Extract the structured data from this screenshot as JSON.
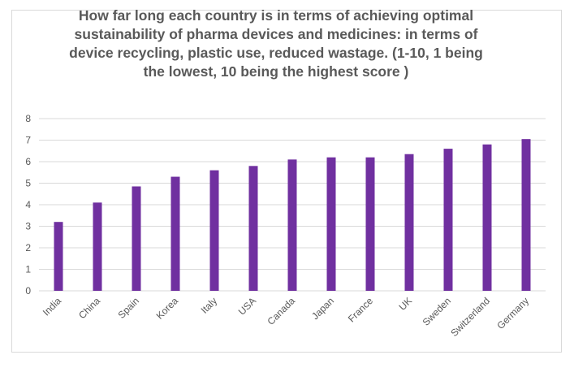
{
  "chart_data": {
    "type": "bar",
    "title": "How far long each country is in terms of achieving optimal sustainability of pharma devices and medicines: in terms of device recycling, plastic use, reduced wastage. (1-10, 1 being the lowest, 10 being the highest score )",
    "title_lines": [
      "How far long each country is in terms of achieving optimal",
      "sustainability of pharma devices and medicines: in terms of",
      "device recycling, plastic use, reduced wastage. (1-10, 1 being",
      "the lowest, 10 being the highest score )"
    ],
    "categories": [
      "India",
      "China",
      "Spain",
      "Korea",
      "Italy",
      "USA",
      "Canada",
      "Japan",
      "France",
      "UK",
      "Sweden",
      "Switzerland",
      "Germany"
    ],
    "values": [
      3.2,
      4.1,
      4.85,
      5.3,
      5.6,
      5.8,
      6.1,
      6.2,
      6.2,
      6.35,
      6.6,
      6.8,
      7.05
    ],
    "ylim": [
      0,
      8
    ],
    "yticks": [
      "0",
      "1",
      "2",
      "3",
      "4",
      "5",
      "6",
      "7",
      "8"
    ],
    "xlabel": "",
    "ylabel": "",
    "grid": true,
    "legend": "none",
    "bar_color": "#7030a0",
    "grid_color": "#d9d9d9"
  }
}
